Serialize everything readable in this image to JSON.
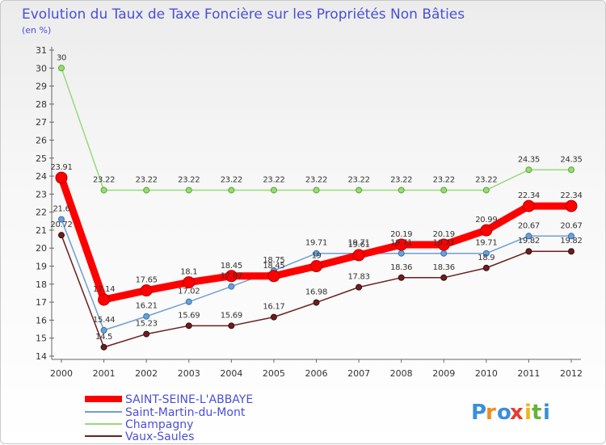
{
  "chart_data": {
    "type": "line",
    "title": "Evolution du Taux de Taxe Foncière sur les Propriétés Non Bâties",
    "ylabel": "(en %)",
    "xlabel": "",
    "x": [
      "2000",
      "2001",
      "2002",
      "2003",
      "2004",
      "2005",
      "2006",
      "2007",
      "2008",
      "2009",
      "2010",
      "2011",
      "2012"
    ],
    "ylim": [
      14,
      31
    ],
    "yticks": [
      14,
      15,
      16,
      17,
      18,
      19,
      20,
      21,
      22,
      23,
      24,
      25,
      26,
      27,
      28,
      29,
      30,
      31
    ],
    "grid": false,
    "series": [
      {
        "name": "SAINT-SEINE-L'ABBAYE",
        "color": "#ff0000",
        "width": 9,
        "marker": 7,
        "values": [
          23.91,
          17.14,
          17.65,
          18.1,
          18.45,
          18.45,
          19,
          19.61,
          20.19,
          20.19,
          20.99,
          22.34,
          22.34
        ],
        "labels": [
          "23.91",
          "17.14",
          "17.65",
          "18.1",
          "18.45",
          "18.45",
          "19",
          "19.61",
          "20.19",
          "20.19",
          "20.99",
          "22.34",
          "22.34"
        ]
      },
      {
        "name": "Saint-Martin-du-Mont",
        "color": "#6f9fd0",
        "width": 1.5,
        "marker": 3.5,
        "values": [
          21.6,
          15.44,
          16.21,
          17.02,
          17.87,
          18.75,
          19.71,
          19.71,
          19.71,
          19.71,
          19.71,
          20.67,
          20.67
        ],
        "labels": [
          "21.6",
          "15.44",
          "16.21",
          "17.02",
          "17.87",
          "18.75",
          "19.71",
          "19.71",
          "19.71",
          "19.71",
          "19.71",
          "20.67",
          "20.67"
        ]
      },
      {
        "name": "Champagny",
        "color": "#99d97a",
        "width": 1.5,
        "marker": 3.5,
        "values": [
          30,
          23.22,
          23.22,
          23.22,
          23.22,
          23.22,
          23.22,
          23.22,
          23.22,
          23.22,
          23.22,
          24.35,
          24.35
        ],
        "labels": [
          "30",
          "23.22",
          "23.22",
          "23.22",
          "23.22",
          "23.22",
          "23.22",
          "23.22",
          "23.22",
          "23.22",
          "23.22",
          "24.35",
          "24.35"
        ]
      },
      {
        "name": "Vaux-Saules",
        "color": "#6b1f1f",
        "width": 1.5,
        "marker": 3.5,
        "values": [
          20.72,
          14.5,
          15.23,
          15.69,
          15.69,
          16.17,
          16.98,
          17.83,
          18.36,
          18.36,
          18.9,
          19.82,
          19.82
        ],
        "labels": [
          "20.72",
          "14.5",
          "15.23",
          "15.69",
          "15.69",
          "16.17",
          "16.98",
          "17.83",
          "18.36",
          "18.36",
          "18.9",
          "19.82",
          "19.82"
        ]
      }
    ],
    "legend_position": "bottom-left"
  },
  "logo": {
    "letters": [
      "P",
      "r",
      "o",
      "x",
      "i",
      "t",
      "i"
    ],
    "colors": [
      "#3b8fd8",
      "#f28a1c",
      "#3b8fd8",
      "#e83a2b",
      "#f0b618",
      "#62b33a",
      "#3b8fd8"
    ]
  }
}
